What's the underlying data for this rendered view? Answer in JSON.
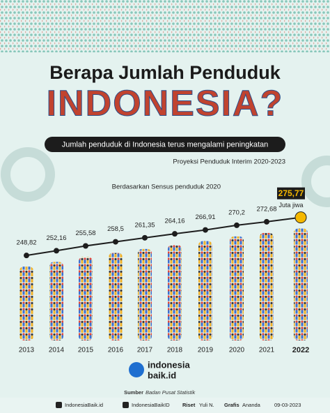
{
  "chart_data": {
    "type": "line",
    "title": "Berapa Jumlah Penduduk",
    "title_big": "INDONESIA?",
    "subtitle": "Jumlah penduduk di Indonesia terus mengalami peningkatan",
    "categories": [
      "2013",
      "2014",
      "2015",
      "2016",
      "2017",
      "2018",
      "2019",
      "2020",
      "2021",
      "2022"
    ],
    "values": [
      248.82,
      252.16,
      255.58,
      258.5,
      261.35,
      264.16,
      266.91,
      270.2,
      272.68,
      275.77
    ],
    "value_labels": [
      "248,82",
      "252,16",
      "255,58",
      "258,5",
      "261,35",
      "264,16",
      "266,91",
      "270,2",
      "272,68",
      "275,77"
    ],
    "unit": "Juta jiwa",
    "annotations": [
      "Berdasarkan Sensus penduduk 2020",
      "Proyeksi Penduduk Interim 2020-2023"
    ],
    "color": "#1d1d1d",
    "highlight_color": "#f5b800",
    "ylim": [
      240,
      285
    ]
  },
  "footer": {
    "logo": [
      "indonesia",
      "baik.id"
    ],
    "source_label": "Sumber",
    "source": "Badan Pusat Statistik",
    "social": [
      "IndonesiaBaik.id",
      "IndonesiaBaikID"
    ],
    "research_label": "Riset",
    "research": "Yuli N.",
    "design_label": "Grafis",
    "design": "Ananda",
    "date": "09-03-2023"
  }
}
